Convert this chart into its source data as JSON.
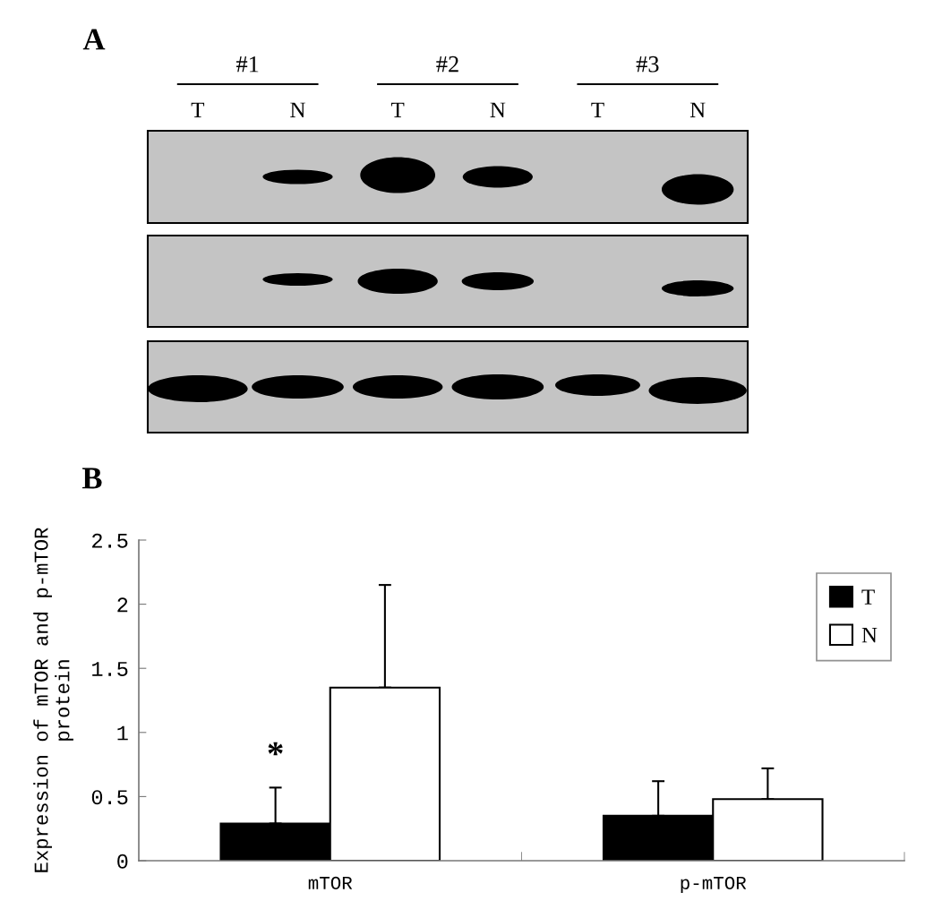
{
  "chart_data": [
    {
      "type": "other",
      "title": "A",
      "categories": [
        "T",
        "N",
        "T",
        "N",
        "T",
        "N"
      ],
      "annotations": [
        "#1",
        "#2",
        "#3"
      ]
    },
    {
      "type": "bar",
      "title": "B",
      "ylabel": "Expression of mTOR and p-mTOR\nprotein",
      "categories": [
        "mTOR",
        "p-mTOR"
      ],
      "series": [
        {
          "name": "T",
          "color": "#000000",
          "values": [
            0.29,
            0.35
          ],
          "errors": [
            [
              0.29,
              0.57
            ],
            [
              0.35,
              0.62
            ]
          ]
        },
        {
          "name": "N",
          "color": "#ffffff",
          "values": [
            1.35,
            0.48
          ],
          "errors": [
            [
              1.35,
              2.15
            ],
            [
              0.48,
              0.72
            ]
          ]
        }
      ],
      "ylim": [
        0,
        2.5
      ],
      "yticks": [
        0,
        0.5,
        1,
        1.5,
        2,
        2.5
      ],
      "legend": "top right",
      "annotations": [
        {
          "text": "*",
          "x": "mTOR",
          "y": 0.81
        }
      ]
    }
  ]
}
